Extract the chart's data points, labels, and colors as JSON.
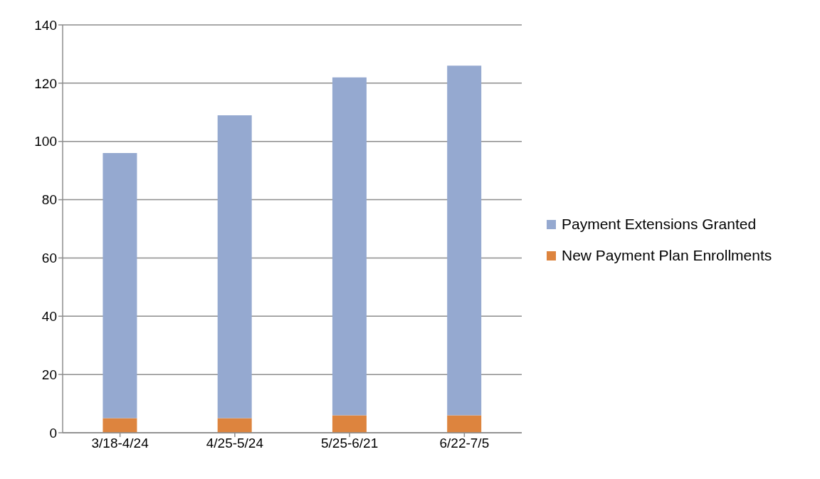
{
  "chart_data": {
    "type": "bar",
    "stacked": true,
    "categories": [
      "3/18-4/24",
      "4/25-5/24",
      "5/25-6/21",
      "6/22-7/5"
    ],
    "series": [
      {
        "name": "New Payment Plan Enrollments",
        "color": "#dd843e",
        "values": [
          5,
          5,
          6,
          6
        ]
      },
      {
        "name": "Payment Extensions Granted",
        "color": "#95a9d0",
        "values": [
          91,
          104,
          116,
          120
        ]
      }
    ],
    "ylim": [
      0,
      140
    ],
    "yticks": [
      0,
      20,
      40,
      60,
      80,
      100,
      120,
      140
    ],
    "grid": "y",
    "legend": "right"
  }
}
